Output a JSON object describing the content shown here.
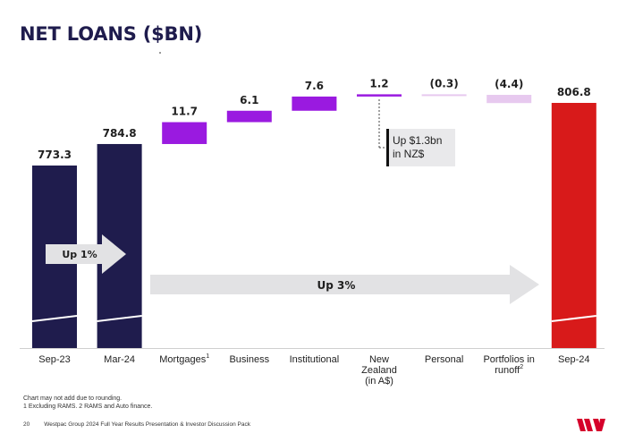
{
  "page_title": "NET LOANS ($BN)",
  "colors": {
    "dark_navy": "#1f1c4d",
    "purple": "#9a1ae0",
    "light_purple": "#e7c9ef",
    "red": "#d81a1a",
    "annotation_grey": "#e9e9eb",
    "arrow_grey": "#e2e2e4",
    "brand_red": "#d5002b"
  },
  "chart_data": {
    "type": "waterfall",
    "title": "NET LOANS ($BN)",
    "categories": [
      "Sep-23",
      "Mar-24",
      "Mortgages",
      "Business",
      "Institutional",
      "New Zealand (in A$)",
      "Personal",
      "Portfolios in runoff",
      "Sep-24"
    ],
    "bars": [
      {
        "label": "Sep-23",
        "kind": "total",
        "value": 773.3,
        "value_label": "773.3",
        "color": "#1f1c4d"
      },
      {
        "label": "Mar-24",
        "kind": "total",
        "value": 784.8,
        "value_label": "784.8",
        "color": "#1f1c4d"
      },
      {
        "label": "Mortgages",
        "footnote": "1",
        "kind": "delta",
        "value": 11.7,
        "value_label": "11.7",
        "color": "#9a1ae0"
      },
      {
        "label": "Business",
        "kind": "delta",
        "value": 6.1,
        "value_label": "6.1",
        "color": "#9a1ae0"
      },
      {
        "label": "Institutional",
        "kind": "delta",
        "value": 7.6,
        "value_label": "7.6",
        "color": "#9a1ae0"
      },
      {
        "label": "New\nZealand\n(in A$)",
        "kind": "delta",
        "value": 1.2,
        "value_label": "1.2",
        "color": "#9a1ae0"
      },
      {
        "label": "Personal",
        "kind": "delta",
        "value": -0.3,
        "value_label": "(0.3)",
        "color": "#e7c9ef"
      },
      {
        "label": "Portfolios in\nrunoff",
        "footnote": "2",
        "kind": "delta",
        "value": -4.4,
        "value_label": "(4.4)",
        "color": "#e7c9ef"
      },
      {
        "label": "Sep-24",
        "kind": "total",
        "value": 806.8,
        "value_label": "806.8",
        "color": "#d81a1a"
      }
    ],
    "annotations": {
      "nz_callout": "Up $1.3bn\nin NZ$",
      "half_year_arrow": "Up 1%",
      "full_year_arrow": "Up 3%"
    },
    "axis_break": true
  },
  "footnotes": [
    "Chart may not add due to rounding.",
    "1 Excluding RAMS. 2 RAMS and Auto finance."
  ],
  "footer": {
    "page_number": "20",
    "text": "Westpac Group 2024 Full Year Results Presentation & Investor Discussion Pack"
  }
}
